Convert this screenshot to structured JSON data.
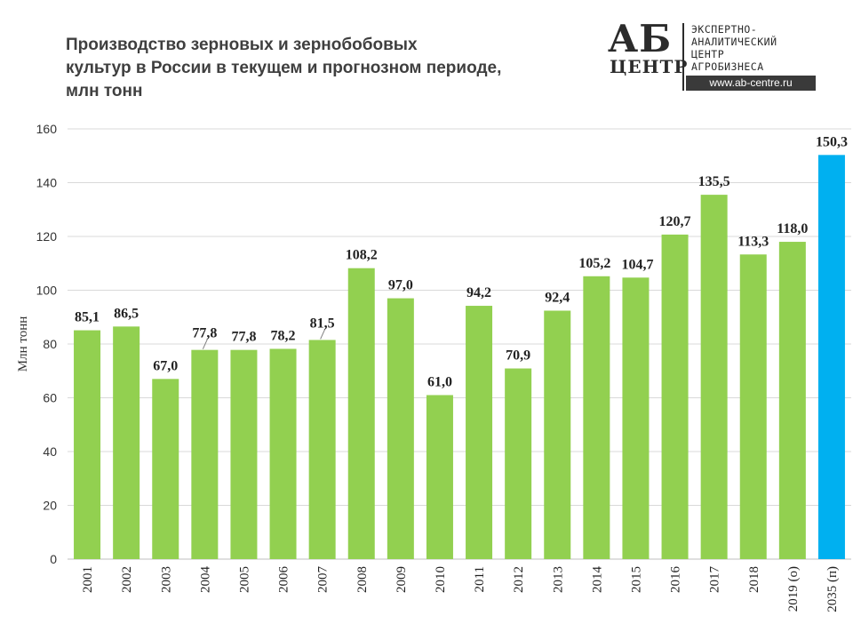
{
  "title_lines": [
    "Производство зерновых и зернобобовых",
    "культур в России в текущем и прогнозном периоде,",
    "млн тонн"
  ],
  "logo": {
    "mark": "АБ",
    "sub": "ЦЕНТР",
    "lines": [
      "ЭКСПЕРТНО-",
      "АНАЛИТИЧЕСКИЙ",
      "ЦЕНТР",
      "АГРОБИЗНЕСА"
    ],
    "url": "www.ab-centre.ru"
  },
  "chart_data": {
    "type": "bar",
    "ylabel": "Млн тонн",
    "ylim": [
      0,
      160
    ],
    "yticks": [
      0,
      20,
      40,
      60,
      80,
      100,
      120,
      140,
      160
    ],
    "grid": true,
    "categories": [
      "2001",
      "2002",
      "2003",
      "2004",
      "2005",
      "2006",
      "2007",
      "2008",
      "2009",
      "2010",
      "2011",
      "2012",
      "2013",
      "2014",
      "2015",
      "2016",
      "2017",
      "2018",
      "2019 (о)",
      "2035 (п)"
    ],
    "values": [
      85.1,
      86.5,
      67.0,
      77.8,
      77.8,
      78.2,
      81.5,
      108.2,
      97.0,
      61.0,
      94.2,
      70.9,
      92.4,
      105.2,
      104.7,
      120.7,
      135.5,
      113.3,
      118.0,
      150.3
    ],
    "labels": [
      "85,1",
      "86,5",
      "67,0",
      "77,8",
      "77,8",
      "78,2",
      "81,5",
      "108,2",
      "97,0",
      "61,0",
      "94,2",
      "70,9",
      "92,4",
      "105,2",
      "104,7",
      "120,7",
      "135,5",
      "113,3",
      "118,0",
      "150,3"
    ],
    "colors": {
      "main": "#92d050",
      "forecast": "#00b0f0",
      "grid": "#d9d9d9",
      "axis": "#bfbfbf"
    }
  }
}
